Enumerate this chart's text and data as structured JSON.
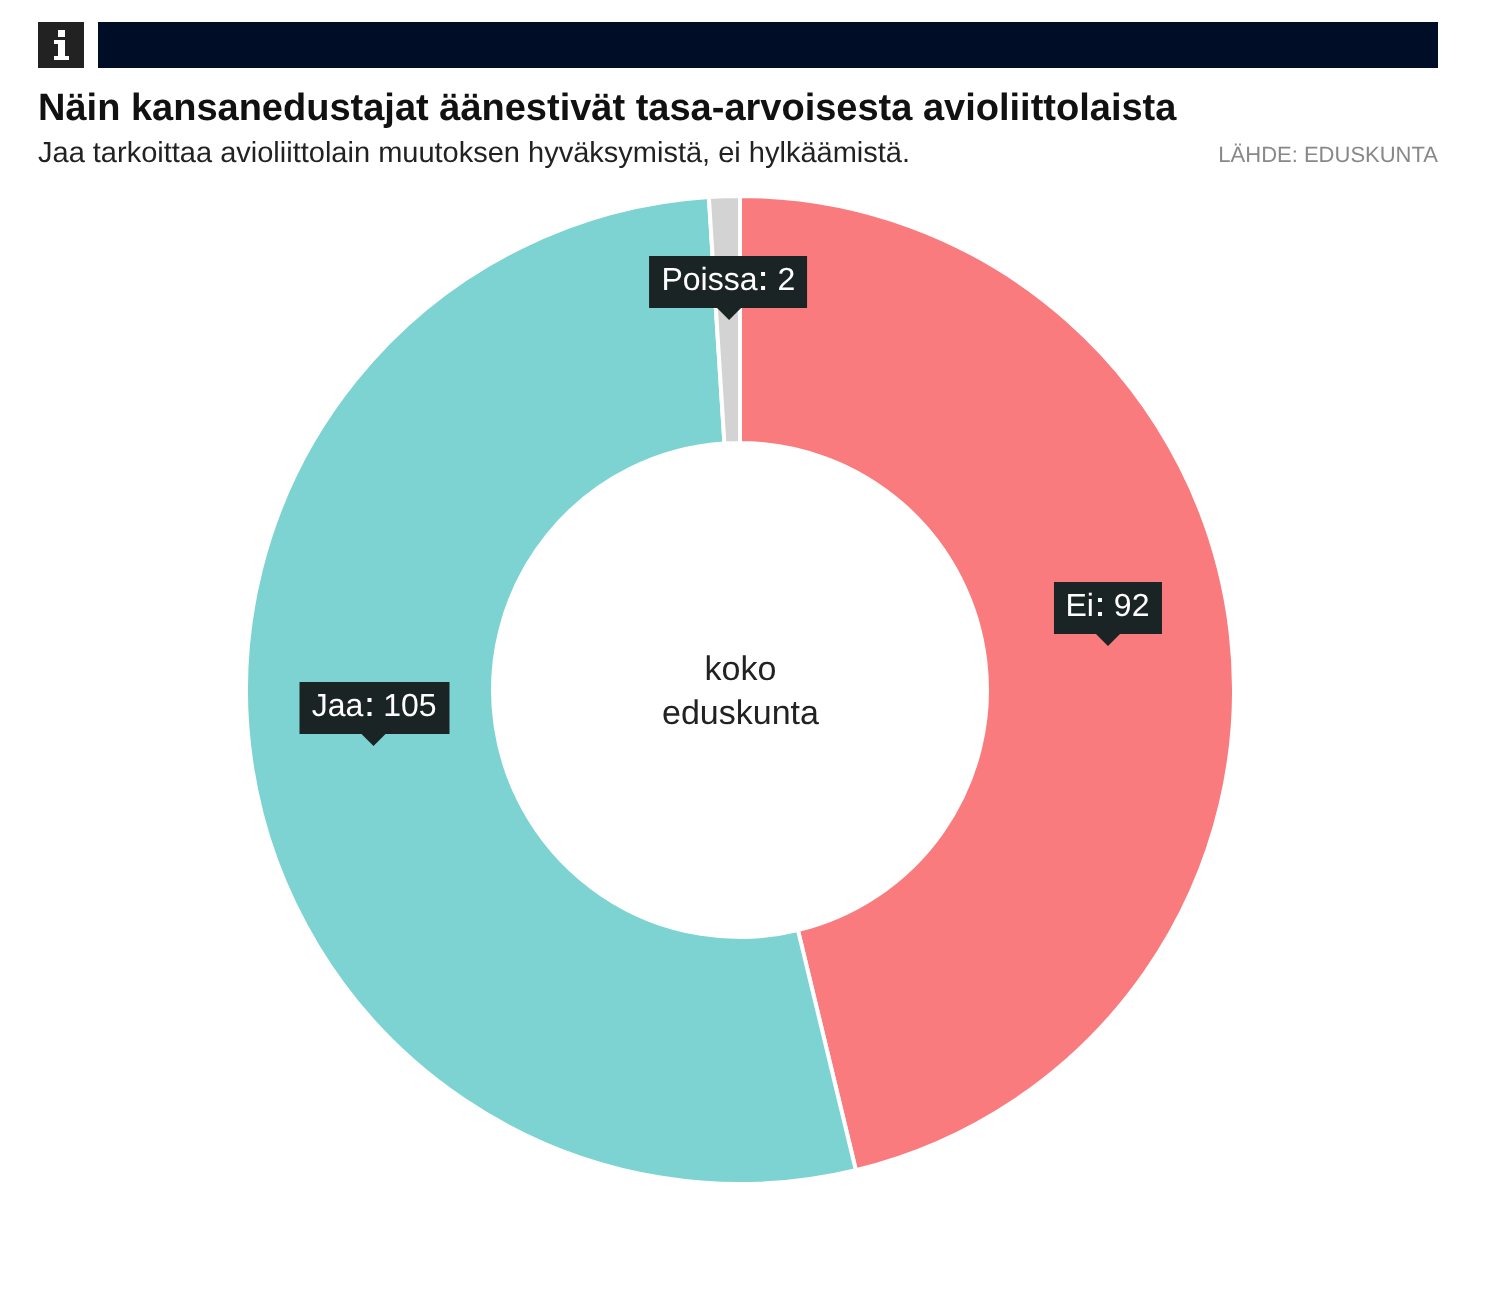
{
  "chart_data": {
    "type": "donut",
    "title": "Näin kansanedustajat äänestivät tasa-arvoisesta avioliittolaista",
    "subtitle": "Jaa tarkoittaa avioliittolain muutoksen hyväksymistä, ei hylkäämistä.",
    "categories": [
      "Ei",
      "Jaa",
      "Poissa"
    ],
    "values": [
      92,
      105,
      2
    ],
    "colors": [
      "#f97b7e",
      "#7dd3d2",
      "#d3d3d3"
    ],
    "data_labels": true,
    "annotations": [
      "koko\neduskunta",
      "LÄHDE: EDUSKUNTA"
    ],
    "legend": false
  }
}
